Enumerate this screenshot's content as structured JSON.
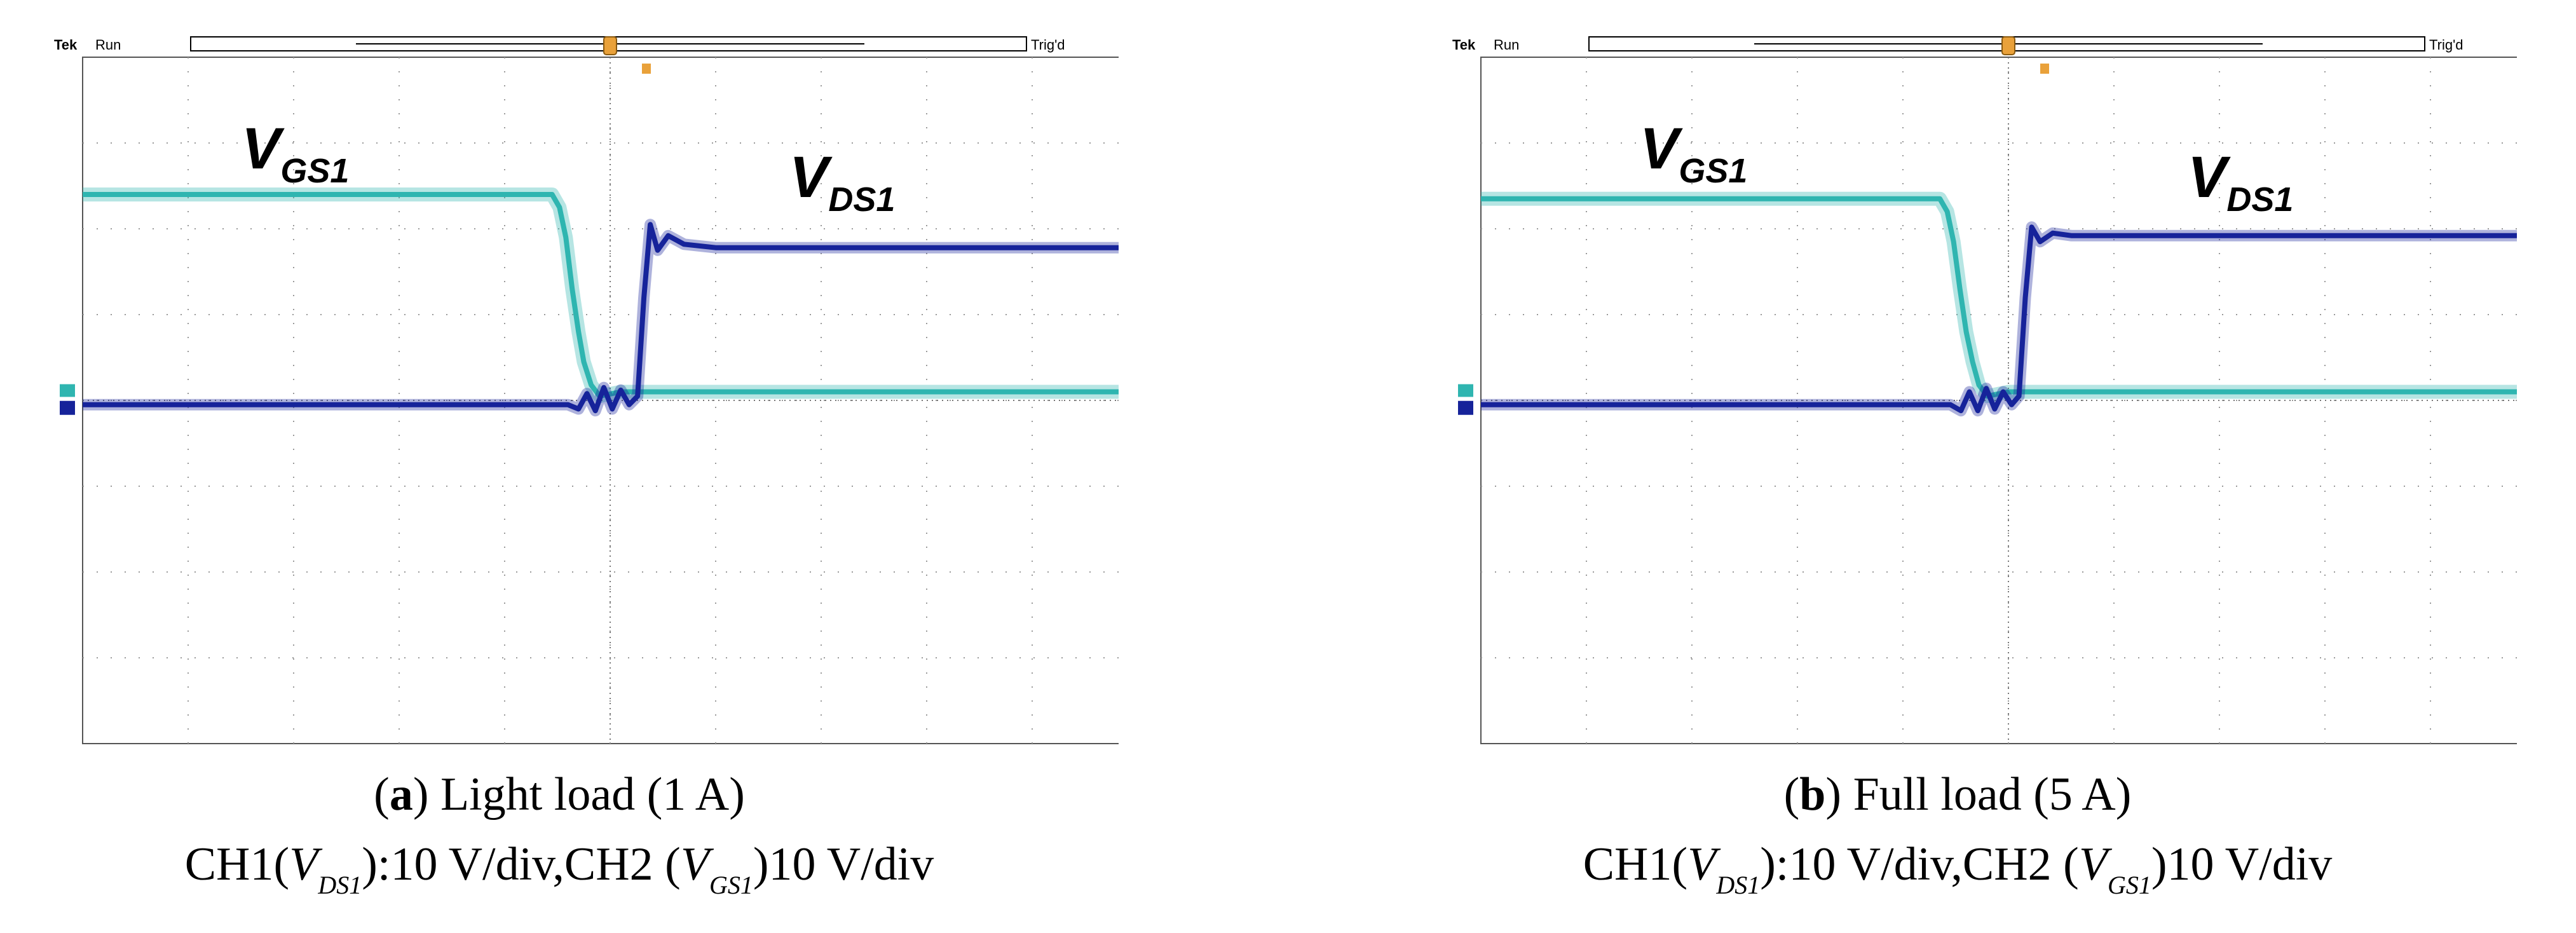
{
  "chart_data": [
    {
      "type": "line",
      "panel_letter": "a",
      "panel_title": "Light load (1 A)",
      "scope": {
        "brand": "Tek",
        "status": "Run",
        "trigger_status": "Trig'd"
      },
      "labels": {
        "vgs": "V",
        "vgs_sub": "GS1",
        "vds": "V",
        "vds_sub": "DS1"
      },
      "axes": {
        "x_divisions": 10,
        "y_divisions": 8,
        "x_range_div": [
          0,
          10
        ],
        "y_range_div": [
          -4,
          4
        ],
        "grid": true
      },
      "series": [
        {
          "name": "VGS1",
          "channel": "CH2",
          "color": "#2fb5b0",
          "x_div": [
            0,
            4.45,
            4.52,
            4.58,
            4.64,
            4.7,
            4.75,
            4.82,
            4.9,
            5.1,
            10
          ],
          "y_div": [
            2.4,
            2.4,
            2.25,
            1.9,
            1.3,
            0.8,
            0.45,
            0.18,
            0.05,
            0.1,
            0.1
          ]
        },
        {
          "name": "VDS1",
          "channel": "CH1",
          "color": "#16239a",
          "x_div": [
            0,
            4.6,
            4.7,
            4.78,
            4.86,
            4.94,
            5.02,
            5.1,
            5.18,
            5.26,
            5.32,
            5.38,
            5.45,
            5.55,
            5.7,
            6,
            10
          ],
          "y_div": [
            -0.05,
            -0.05,
            -0.1,
            0.08,
            -0.12,
            0.15,
            -0.1,
            0.12,
            -0.05,
            0.05,
            1.2,
            2.05,
            1.75,
            1.92,
            1.82,
            1.78,
            1.78
          ]
        }
      ],
      "caption": {
        "letter": "a",
        "text": "Light load (1 A)",
        "line2_prefix": "CH1(",
        "ch1_sym": "V",
        "ch1_sub": "DS1",
        "ch1_scale": "):10 V/div,CH2 (",
        "ch2_sym": "V",
        "ch2_sub": "GS1",
        "ch2_scale": ")10 V/div"
      }
    },
    {
      "type": "line",
      "panel_letter": "b",
      "panel_title": "Full load (5 A)",
      "scope": {
        "brand": "Tek",
        "status": "Run",
        "trigger_status": "Trig'd"
      },
      "labels": {
        "vgs": "V",
        "vgs_sub": "GS1",
        "vds": "V",
        "vds_sub": "DS1"
      },
      "axes": {
        "x_divisions": 10,
        "y_divisions": 8,
        "x_range_div": [
          0,
          10
        ],
        "y_range_div": [
          -4,
          4
        ],
        "grid": true
      },
      "series": [
        {
          "name": "VGS1",
          "channel": "CH2",
          "color": "#2fb5b0",
          "x_div": [
            0,
            4.35,
            4.42,
            4.48,
            4.54,
            4.6,
            4.66,
            4.72,
            4.8,
            5.0,
            10
          ],
          "y_div": [
            2.35,
            2.35,
            2.2,
            1.85,
            1.3,
            0.8,
            0.45,
            0.18,
            0.05,
            0.1,
            0.1
          ]
        },
        {
          "name": "VDS1",
          "channel": "CH1",
          "color": "#16239a",
          "x_div": [
            0,
            4.45,
            4.55,
            4.63,
            4.71,
            4.79,
            4.87,
            4.95,
            5.03,
            5.1,
            5.16,
            5.22,
            5.3,
            5.42,
            5.6,
            6,
            10
          ],
          "y_div": [
            -0.05,
            -0.05,
            -0.12,
            0.1,
            -0.12,
            0.14,
            -0.1,
            0.1,
            -0.05,
            0.05,
            1.2,
            2.02,
            1.85,
            1.95,
            1.92,
            1.92,
            1.92
          ]
        }
      ],
      "caption": {
        "letter": "b",
        "text": "Full load (5 A)",
        "line2_prefix": "CH1(",
        "ch1_sym": "V",
        "ch1_sub": "DS1",
        "ch1_scale": "):10 V/div,CH2 (",
        "ch2_sym": "V",
        "ch2_sub": "GS1",
        "ch2_scale": ")10 V/div"
      }
    }
  ]
}
